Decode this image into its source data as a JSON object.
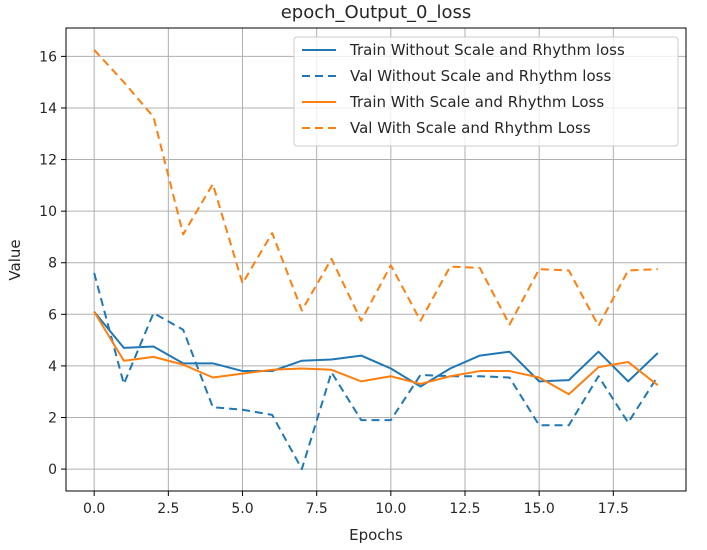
{
  "chart_data": {
    "type": "line",
    "title": "epoch_Output_0_loss",
    "xlabel": "Epochs",
    "ylabel": "Value",
    "xlim": [
      -0.95,
      19.95
    ],
    "ylim": [
      -0.85,
      17.1
    ],
    "xticks": [
      0.0,
      2.5,
      5.0,
      7.5,
      10.0,
      12.5,
      15.0,
      17.5
    ],
    "xtick_labels": [
      "0.0",
      "2.5",
      "5.0",
      "7.5",
      "10.0",
      "12.5",
      "15.0",
      "17.5"
    ],
    "yticks": [
      0,
      2,
      4,
      6,
      8,
      10,
      12,
      14,
      16
    ],
    "ytick_labels": [
      "0",
      "2",
      "4",
      "6",
      "8",
      "10",
      "12",
      "14",
      "16"
    ],
    "grid": true,
    "legend_position": "top-right",
    "x": [
      0,
      1,
      2,
      3,
      4,
      5,
      6,
      7,
      8,
      9,
      10,
      11,
      12,
      13,
      14,
      15,
      16,
      17,
      18,
      19
    ],
    "series": [
      {
        "name": "Train Without Scale and Rhythm loss",
        "color": "#1f77b4",
        "style": "solid",
        "values": [
          6.1,
          4.7,
          4.75,
          4.1,
          4.1,
          3.8,
          3.8,
          4.2,
          4.25,
          4.4,
          3.9,
          3.2,
          3.9,
          4.4,
          4.55,
          3.4,
          3.45,
          4.55,
          3.4,
          4.5
        ]
      },
      {
        "name": "Val Without Scale and Rhythm loss",
        "color": "#1f77b4",
        "style": "dashed",
        "values": [
          7.6,
          3.3,
          6.05,
          5.4,
          2.4,
          2.3,
          2.1,
          0.0,
          3.75,
          1.9,
          1.9,
          3.65,
          3.6,
          3.6,
          3.55,
          1.7,
          1.7,
          3.6,
          1.8,
          3.6
        ]
      },
      {
        "name": "Train With Scale and Rhythm Loss",
        "color": "#ff7f0e",
        "style": "solid",
        "values": [
          6.1,
          4.2,
          4.35,
          4.05,
          3.55,
          3.7,
          3.85,
          3.9,
          3.85,
          3.4,
          3.6,
          3.3,
          3.6,
          3.8,
          3.8,
          3.55,
          2.9,
          3.95,
          4.15,
          3.25
        ]
      },
      {
        "name": "Val With Scale and Rhythm Loss",
        "color": "#ff7f0e",
        "style": "dashed",
        "values": [
          16.25,
          15.0,
          13.65,
          9.1,
          11.05,
          7.2,
          9.15,
          6.15,
          8.15,
          5.75,
          7.9,
          5.75,
          7.85,
          7.8,
          5.6,
          7.75,
          7.7,
          5.55,
          7.7,
          7.75
        ]
      }
    ]
  }
}
